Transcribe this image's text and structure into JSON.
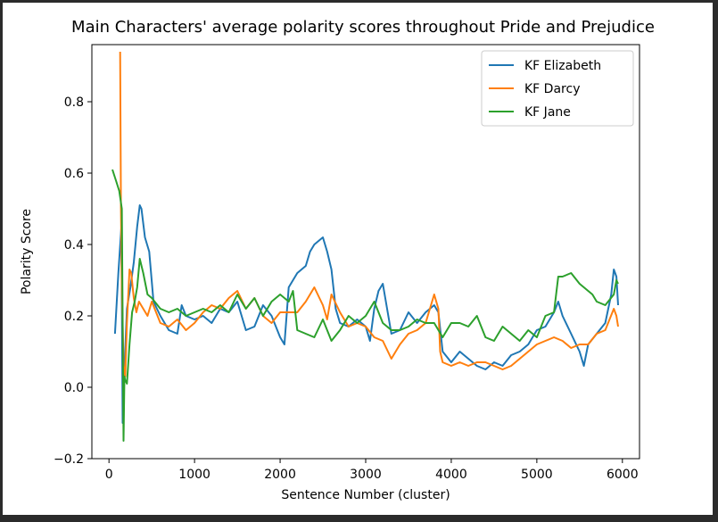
{
  "chart_data": {
    "type": "line",
    "title": "Main Characters' average polarity scores throughout Pride and Prejudice",
    "xlabel": "Sentence Number (cluster)",
    "ylabel": "Polarity Score",
    "xlim": [
      -200,
      6200
    ],
    "ylim": [
      -0.2,
      0.96
    ],
    "xticks": [
      0,
      1000,
      2000,
      3000,
      4000,
      5000,
      6000
    ],
    "yticks": [
      -0.2,
      0.0,
      0.2,
      0.4,
      0.6,
      0.8
    ],
    "ytick_labels": [
      "−0.2",
      "0.0",
      "0.2",
      "0.4",
      "0.6",
      "0.8"
    ],
    "grid": false,
    "legend": "top-right",
    "series": [
      {
        "name": "KF Elizabeth",
        "color": "#1f77b4",
        "x": [
          70,
          110,
          145,
          160,
          180,
          210,
          250,
          290,
          330,
          360,
          380,
          420,
          470,
          520,
          600,
          700,
          800,
          850,
          900,
          1000,
          1100,
          1200,
          1300,
          1400,
          1500,
          1600,
          1700,
          1800,
          1900,
          2000,
          2050,
          2100,
          2200,
          2300,
          2350,
          2400,
          2500,
          2550,
          2600,
          2650,
          2700,
          2800,
          2900,
          3000,
          3050,
          3100,
          3150,
          3200,
          3300,
          3400,
          3500,
          3600,
          3700,
          3800,
          3850,
          3900,
          4000,
          4100,
          4200,
          4300,
          4400,
          4500,
          4600,
          4700,
          4800,
          4900,
          5000,
          5100,
          5200,
          5250,
          5300,
          5400,
          5500,
          5550,
          5600,
          5700,
          5800,
          5870,
          5900,
          5930,
          5950
        ],
        "y": [
          0.15,
          0.32,
          0.45,
          -0.1,
          0.05,
          0.22,
          0.28,
          0.35,
          0.45,
          0.51,
          0.5,
          0.42,
          0.38,
          0.24,
          0.2,
          0.16,
          0.15,
          0.23,
          0.2,
          0.19,
          0.2,
          0.18,
          0.22,
          0.21,
          0.24,
          0.16,
          0.17,
          0.23,
          0.2,
          0.14,
          0.12,
          0.28,
          0.32,
          0.34,
          0.38,
          0.4,
          0.42,
          0.38,
          0.33,
          0.22,
          0.18,
          0.17,
          0.19,
          0.17,
          0.13,
          0.22,
          0.27,
          0.29,
          0.15,
          0.16,
          0.21,
          0.18,
          0.21,
          0.23,
          0.21,
          0.1,
          0.07,
          0.1,
          0.08,
          0.06,
          0.05,
          0.07,
          0.06,
          0.09,
          0.1,
          0.12,
          0.16,
          0.17,
          0.21,
          0.24,
          0.2,
          0.15,
          0.1,
          0.06,
          0.12,
          0.15,
          0.18,
          0.26,
          0.33,
          0.31,
          0.23
        ]
      },
      {
        "name": "KF Darcy",
        "color": "#ff7f0e",
        "x": [
          130,
          140,
          150,
          170,
          190,
          210,
          240,
          260,
          290,
          320,
          350,
          400,
          450,
          500,
          600,
          700,
          800,
          900,
          1000,
          1100,
          1200,
          1300,
          1400,
          1500,
          1600,
          1700,
          1800,
          1900,
          2000,
          2100,
          2200,
          2300,
          2400,
          2500,
          2550,
          2600,
          2700,
          2800,
          2900,
          3000,
          3100,
          3200,
          3300,
          3400,
          3500,
          3600,
          3700,
          3800,
          3850,
          3870,
          3900,
          4000,
          4100,
          4200,
          4300,
          4400,
          4500,
          4600,
          4700,
          4800,
          4900,
          5000,
          5100,
          5200,
          5300,
          5400,
          5500,
          5600,
          5700,
          5800,
          5900,
          5930,
          5950
        ],
        "y": [
          0.94,
          0.5,
          0.28,
          0.06,
          0.03,
          0.18,
          0.33,
          0.32,
          0.25,
          0.21,
          0.24,
          0.22,
          0.2,
          0.24,
          0.18,
          0.17,
          0.19,
          0.16,
          0.18,
          0.21,
          0.23,
          0.22,
          0.25,
          0.27,
          0.22,
          0.25,
          0.2,
          0.18,
          0.21,
          0.21,
          0.21,
          0.24,
          0.28,
          0.23,
          0.19,
          0.26,
          0.21,
          0.17,
          0.18,
          0.17,
          0.14,
          0.13,
          0.08,
          0.12,
          0.15,
          0.16,
          0.18,
          0.26,
          0.22,
          0.1,
          0.07,
          0.06,
          0.07,
          0.06,
          0.07,
          0.07,
          0.06,
          0.05,
          0.06,
          0.08,
          0.1,
          0.12,
          0.13,
          0.14,
          0.13,
          0.11,
          0.12,
          0.12,
          0.15,
          0.16,
          0.22,
          0.2,
          0.17
        ]
      },
      {
        "name": "KF Jane",
        "color": "#2ca02c",
        "x": [
          40,
          80,
          120,
          150,
          160,
          170,
          180,
          190,
          210,
          240,
          270,
          300,
          330,
          360,
          400,
          450,
          500,
          600,
          700,
          800,
          900,
          1000,
          1100,
          1200,
          1300,
          1400,
          1500,
          1600,
          1700,
          1800,
          1900,
          2000,
          2100,
          2150,
          2200,
          2300,
          2400,
          2500,
          2600,
          2700,
          2800,
          2900,
          3000,
          3100,
          3200,
          3300,
          3400,
          3500,
          3600,
          3700,
          3800,
          3900,
          4000,
          4100,
          4200,
          4300,
          4400,
          4500,
          4600,
          4700,
          4800,
          4900,
          5000,
          5100,
          5200,
          5250,
          5300,
          5400,
          5500,
          5600,
          5650,
          5700,
          5800,
          5900,
          5930,
          5950
        ],
        "y": [
          0.61,
          0.58,
          0.55,
          0.5,
          0.2,
          -0.15,
          0.03,
          0.02,
          0.01,
          0.12,
          0.21,
          0.24,
          0.28,
          0.36,
          0.32,
          0.26,
          0.25,
          0.22,
          0.21,
          0.22,
          0.2,
          0.21,
          0.22,
          0.21,
          0.23,
          0.21,
          0.26,
          0.22,
          0.25,
          0.2,
          0.24,
          0.26,
          0.24,
          0.27,
          0.16,
          0.15,
          0.14,
          0.19,
          0.13,
          0.16,
          0.2,
          0.18,
          0.2,
          0.24,
          0.18,
          0.16,
          0.16,
          0.17,
          0.19,
          0.18,
          0.18,
          0.14,
          0.18,
          0.18,
          0.17,
          0.2,
          0.14,
          0.13,
          0.17,
          0.15,
          0.13,
          0.16,
          0.14,
          0.2,
          0.21,
          0.31,
          0.31,
          0.32,
          0.29,
          0.27,
          0.26,
          0.24,
          0.23,
          0.26,
          0.3,
          0.29
        ]
      }
    ]
  }
}
